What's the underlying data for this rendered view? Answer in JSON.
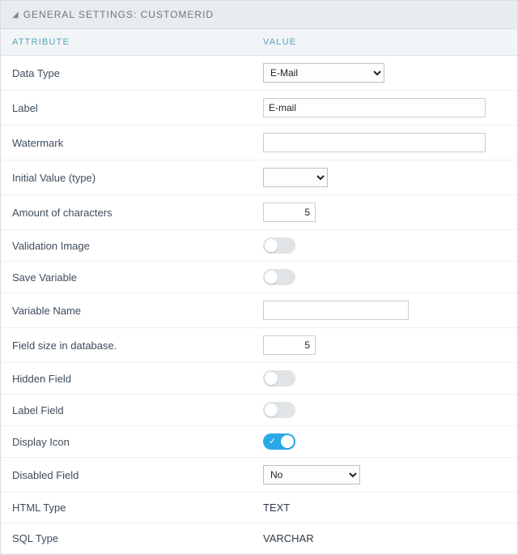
{
  "header": {
    "title": "GENERAL SETTINGS: CUSTOMERID"
  },
  "columns": {
    "attribute": "ATTRIBUTE",
    "value": "VALUE"
  },
  "rows": {
    "data_type": {
      "label": "Data Type",
      "value": "E-Mail",
      "control": "select",
      "width": "w-sel"
    },
    "label": {
      "label": "Label",
      "value": "E-mail",
      "control": "text",
      "width": "w-wide"
    },
    "watermark": {
      "label": "Watermark",
      "value": "",
      "control": "text",
      "width": "w-wide"
    },
    "initial_value": {
      "label": "Initial Value (type)",
      "value": "",
      "control": "select",
      "width": "w-sel2"
    },
    "amount_chars": {
      "label": "Amount of characters",
      "value": "5",
      "control": "text",
      "width": "w-sm"
    },
    "validation_image": {
      "label": "Validation Image",
      "value": false,
      "control": "toggle"
    },
    "save_variable": {
      "label": "Save Variable",
      "value": false,
      "control": "toggle"
    },
    "variable_name": {
      "label": "Variable Name",
      "value": "",
      "control": "text",
      "width": "w-med"
    },
    "field_size_db": {
      "label": "Field size in database.",
      "value": "5",
      "control": "text",
      "width": "w-sm"
    },
    "hidden_field": {
      "label": "Hidden Field",
      "value": false,
      "control": "toggle"
    },
    "label_field": {
      "label": "Label Field",
      "value": false,
      "control": "toggle"
    },
    "display_icon": {
      "label": "Display Icon",
      "value": true,
      "control": "toggle"
    },
    "disabled_field": {
      "label": "Disabled Field",
      "value": "No",
      "control": "select",
      "width": "w-sel3"
    },
    "html_type": {
      "label": "HTML Type",
      "value": "TEXT",
      "control": "static"
    },
    "sql_type": {
      "label": "SQL Type",
      "value": "VARCHAR",
      "control": "static"
    }
  },
  "row_order": [
    "data_type",
    "label",
    "watermark",
    "initial_value",
    "amount_chars",
    "validation_image",
    "save_variable",
    "variable_name",
    "field_size_db",
    "hidden_field",
    "label_field",
    "display_icon",
    "disabled_field",
    "html_type",
    "sql_type"
  ],
  "style": {
    "accent_on": "#29a9e8",
    "border": "#d8dde2"
  }
}
